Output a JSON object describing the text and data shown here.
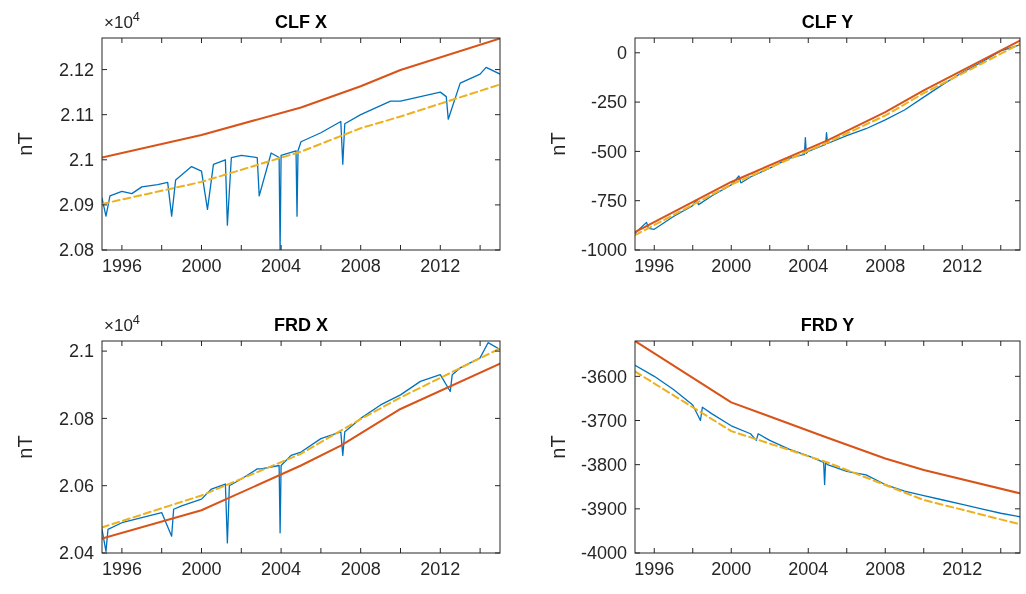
{
  "chart_data": [
    {
      "type": "line",
      "title": "CLF X",
      "ylabel": "nT",
      "annotations": [
        "×10$^{4}$"
      ],
      "xlim": [
        1995,
        2015
      ],
      "xticks": [
        1996,
        {
          "value": 1998,
          "label": null
        },
        2000,
        {
          "value": 2002,
          "label": null
        },
        2004,
        {
          "value": 2006,
          "label": null
        },
        2008,
        {
          "value": 2010,
          "label": null
        },
        2012,
        {
          "value": 2014,
          "label": null
        }
      ],
      "ylim": [
        2.08,
        2.127
      ],
      "yticks": [
        2.08,
        2.09,
        2.1,
        2.11,
        2.12
      ],
      "series": [
        {
          "color": "#0072bd",
          "line_style": "solid",
          "x": [
            1995.0,
            1995.2,
            1995.4,
            1996.0,
            1996.5,
            1997.0,
            1997.8,
            1998.3,
            1998.5,
            1998.7,
            1999.5,
            2000.0,
            2000.3,
            2000.6,
            2001.2,
            2001.3,
            2001.5,
            2002.0,
            2002.8,
            2002.9,
            2003.5,
            2003.9,
            2003.95,
            2004.0,
            2004.75,
            2004.8,
            2004.85,
            2005.0,
            2006.0,
            2007.0,
            2007.1,
            2007.2,
            2008.0,
            2009.0,
            2009.5,
            2010.0,
            2011.0,
            2012.0,
            2012.3,
            2012.4,
            2013.0,
            2014.0,
            2014.3,
            2015.0
          ],
          "values": [
            2.0915,
            2.0875,
            2.092,
            2.093,
            2.0925,
            2.094,
            2.0945,
            2.095,
            2.0875,
            2.0955,
            2.0985,
            2.0975,
            2.089,
            2.099,
            2.1,
            2.0855,
            2.1005,
            2.101,
            2.1005,
            2.092,
            2.1015,
            2.1005,
            2.08,
            2.101,
            2.102,
            2.0875,
            2.102,
            2.104,
            2.106,
            2.1085,
            2.099,
            2.108,
            2.11,
            2.112,
            2.113,
            2.113,
            2.114,
            2.115,
            2.114,
            2.109,
            2.117,
            2.119,
            2.1205,
            2.119
          ]
        },
        {
          "color": "#d95319",
          "line_style": "solid",
          "x": [
            1995,
            2000,
            2005,
            2008,
            2010,
            2015
          ],
          "values": [
            2.1005,
            2.1055,
            2.1116,
            2.1163,
            2.1199,
            2.1269
          ]
        },
        {
          "color": "#edb120",
          "line_style": "dashed",
          "x": [
            1995,
            2000,
            2005,
            2008,
            2010,
            2015
          ],
          "values": [
            2.0902,
            2.0951,
            2.1018,
            2.107,
            2.1096,
            2.1167
          ]
        }
      ]
    },
    {
      "type": "line",
      "title": "CLF Y",
      "ylabel": "nT",
      "xlim": [
        1995,
        2015
      ],
      "xticks": [
        1996,
        {
          "value": 1998,
          "label": null
        },
        2000,
        {
          "value": 2002,
          "label": null
        },
        2004,
        {
          "value": 2006,
          "label": null
        },
        2008,
        {
          "value": 2010,
          "label": null
        },
        2012,
        {
          "value": 2014,
          "label": null
        }
      ],
      "ylim": [
        -1000,
        75
      ],
      "yticks": [
        -1000,
        -750,
        -500,
        -250,
        0
      ],
      "series": [
        {
          "color": "#0072bd",
          "line_style": "solid",
          "x": [
            1995.0,
            1995.6,
            1995.7,
            1996.0,
            1997.0,
            1998.0,
            1998.2,
            1998.3,
            1999.0,
            2000.0,
            2000.4,
            2000.5,
            2001.0,
            2002.0,
            2003.0,
            2003.8,
            2003.85,
            2003.9,
            2004.0,
            2004.9,
            2004.95,
            2005.0,
            2006.0,
            2007.0,
            2008.0,
            2009.0,
            2010.0,
            2011.0,
            2012.0,
            2013.0,
            2014.0,
            2015.0
          ],
          "values": [
            -915,
            -860,
            -890,
            -895,
            -830,
            -775,
            -745,
            -770,
            -725,
            -670,
            -625,
            -660,
            -630,
            -585,
            -535,
            -515,
            -430,
            -510,
            -500,
            -465,
            -405,
            -460,
            -420,
            -385,
            -340,
            -290,
            -225,
            -160,
            -100,
            -48,
            10,
            40
          ]
        },
        {
          "color": "#d95319",
          "line_style": "solid",
          "x": [
            1995,
            2000,
            2005,
            2008,
            2010,
            2015
          ],
          "values": [
            -909,
            -655,
            -444,
            -301,
            -191,
            62
          ]
        },
        {
          "color": "#edb120",
          "line_style": "dashed",
          "x": [
            1995,
            2000,
            2005,
            2008,
            2010,
            2015
          ],
          "values": [
            -925,
            -668,
            -455,
            -318,
            -205,
            45
          ]
        }
      ]
    },
    {
      "type": "line",
      "title": "FRD X",
      "ylabel": "nT",
      "annotations": [
        "×10$^{4}$"
      ],
      "xlim": [
        1995,
        2015
      ],
      "xticks": [
        1996,
        {
          "value": 1998,
          "label": null
        },
        2000,
        {
          "value": 2002,
          "label": null
        },
        2004,
        {
          "value": 2006,
          "label": null
        },
        2008,
        {
          "value": 2010,
          "label": null
        },
        2012,
        {
          "value": 2014,
          "label": null
        }
      ],
      "ylim": [
        2.04,
        2.103
      ],
      "yticks": [
        2.04,
        2.06,
        2.08,
        2.1
      ],
      "series": [
        {
          "color": "#0072bd",
          "line_style": "solid",
          "x": [
            1995.0,
            1995.2,
            1995.3,
            1996.0,
            1997.0,
            1998.0,
            1998.5,
            1998.6,
            1999.0,
            2000.0,
            2000.5,
            2001.2,
            2001.3,
            2001.4,
            2002.0,
            2002.8,
            2003.0,
            2003.9,
            2003.95,
            2004.0,
            2004.5,
            2005.0,
            2006.0,
            2007.0,
            2007.1,
            2007.2,
            2008.0,
            2009.0,
            2010.0,
            2011.0,
            2012.0,
            2012.5,
            2012.6,
            2013.0,
            2014.0,
            2014.4,
            2015.0
          ],
          "values": [
            2.047,
            2.0405,
            2.047,
            2.049,
            2.0505,
            2.052,
            2.045,
            2.053,
            2.054,
            2.056,
            2.059,
            2.0605,
            2.043,
            2.06,
            2.062,
            2.065,
            2.065,
            2.066,
            2.046,
            2.066,
            2.069,
            2.07,
            2.074,
            2.076,
            2.069,
            2.076,
            2.08,
            2.084,
            2.087,
            2.091,
            2.093,
            2.088,
            2.093,
            2.095,
            2.098,
            2.1025,
            2.1005
          ]
        },
        {
          "color": "#d95319",
          "line_style": "solid",
          "x": [
            1995,
            2000,
            2005,
            2007,
            2010,
            2015
          ],
          "values": [
            2.0443,
            2.0527,
            2.066,
            2.0719,
            2.0828,
            2.0963
          ]
        },
        {
          "color": "#edb120",
          "line_style": "dashed",
          "x": [
            1995,
            2000,
            2005,
            2008,
            2010,
            2015
          ],
          "values": [
            2.0476,
            2.0571,
            2.0695,
            2.0798,
            2.0862,
            2.1008
          ]
        }
      ]
    },
    {
      "type": "line",
      "title": "FRD Y",
      "ylabel": "nT",
      "xlim": [
        1995,
        2015
      ],
      "xticks": [
        1996,
        {
          "value": 1998,
          "label": null
        },
        2000,
        {
          "value": 2002,
          "label": null
        },
        2004,
        {
          "value": 2006,
          "label": null
        },
        2008,
        {
          "value": 2010,
          "label": null
        },
        2012,
        {
          "value": 2014,
          "label": null
        }
      ],
      "ylim": [
        -4000,
        -3520
      ],
      "yticks": [
        -4000,
        -3900,
        -3800,
        -3700,
        -3600
      ],
      "series": [
        {
          "color": "#0072bd",
          "line_style": "solid",
          "x": [
            1995,
            1996,
            1997,
            1998,
            1998.4,
            1998.5,
            1999,
            2000,
            2001,
            2001.3,
            2001.4,
            2002,
            2003,
            2004,
            2004.8,
            2004.85,
            2004.9,
            2005,
            2006,
            2007,
            2008,
            2009,
            2010,
            2011,
            2012,
            2013,
            2014,
            2015
          ],
          "values": [
            -3575,
            -3600,
            -3630,
            -3665,
            -3700,
            -3670,
            -3685,
            -3712,
            -3730,
            -3745,
            -3730,
            -3745,
            -3765,
            -3780,
            -3795,
            -3845,
            -3795,
            -3800,
            -3815,
            -3823,
            -3845,
            -3860,
            -3870,
            -3880,
            -3890,
            -3900,
            -3910,
            -3918
          ]
        },
        {
          "color": "#d95319",
          "line_style": "solid",
          "x": [
            1995,
            2000,
            2005,
            2008,
            2010,
            2015
          ],
          "values": [
            -3520,
            -3659,
            -3739,
            -3786,
            -3812,
            -3865
          ]
        },
        {
          "color": "#edb120",
          "line_style": "dashed",
          "x": [
            1995,
            2000,
            2005,
            2010,
            2015
          ],
          "values": [
            -3589,
            -3724,
            -3795,
            -3880,
            -3935
          ]
        }
      ]
    }
  ]
}
